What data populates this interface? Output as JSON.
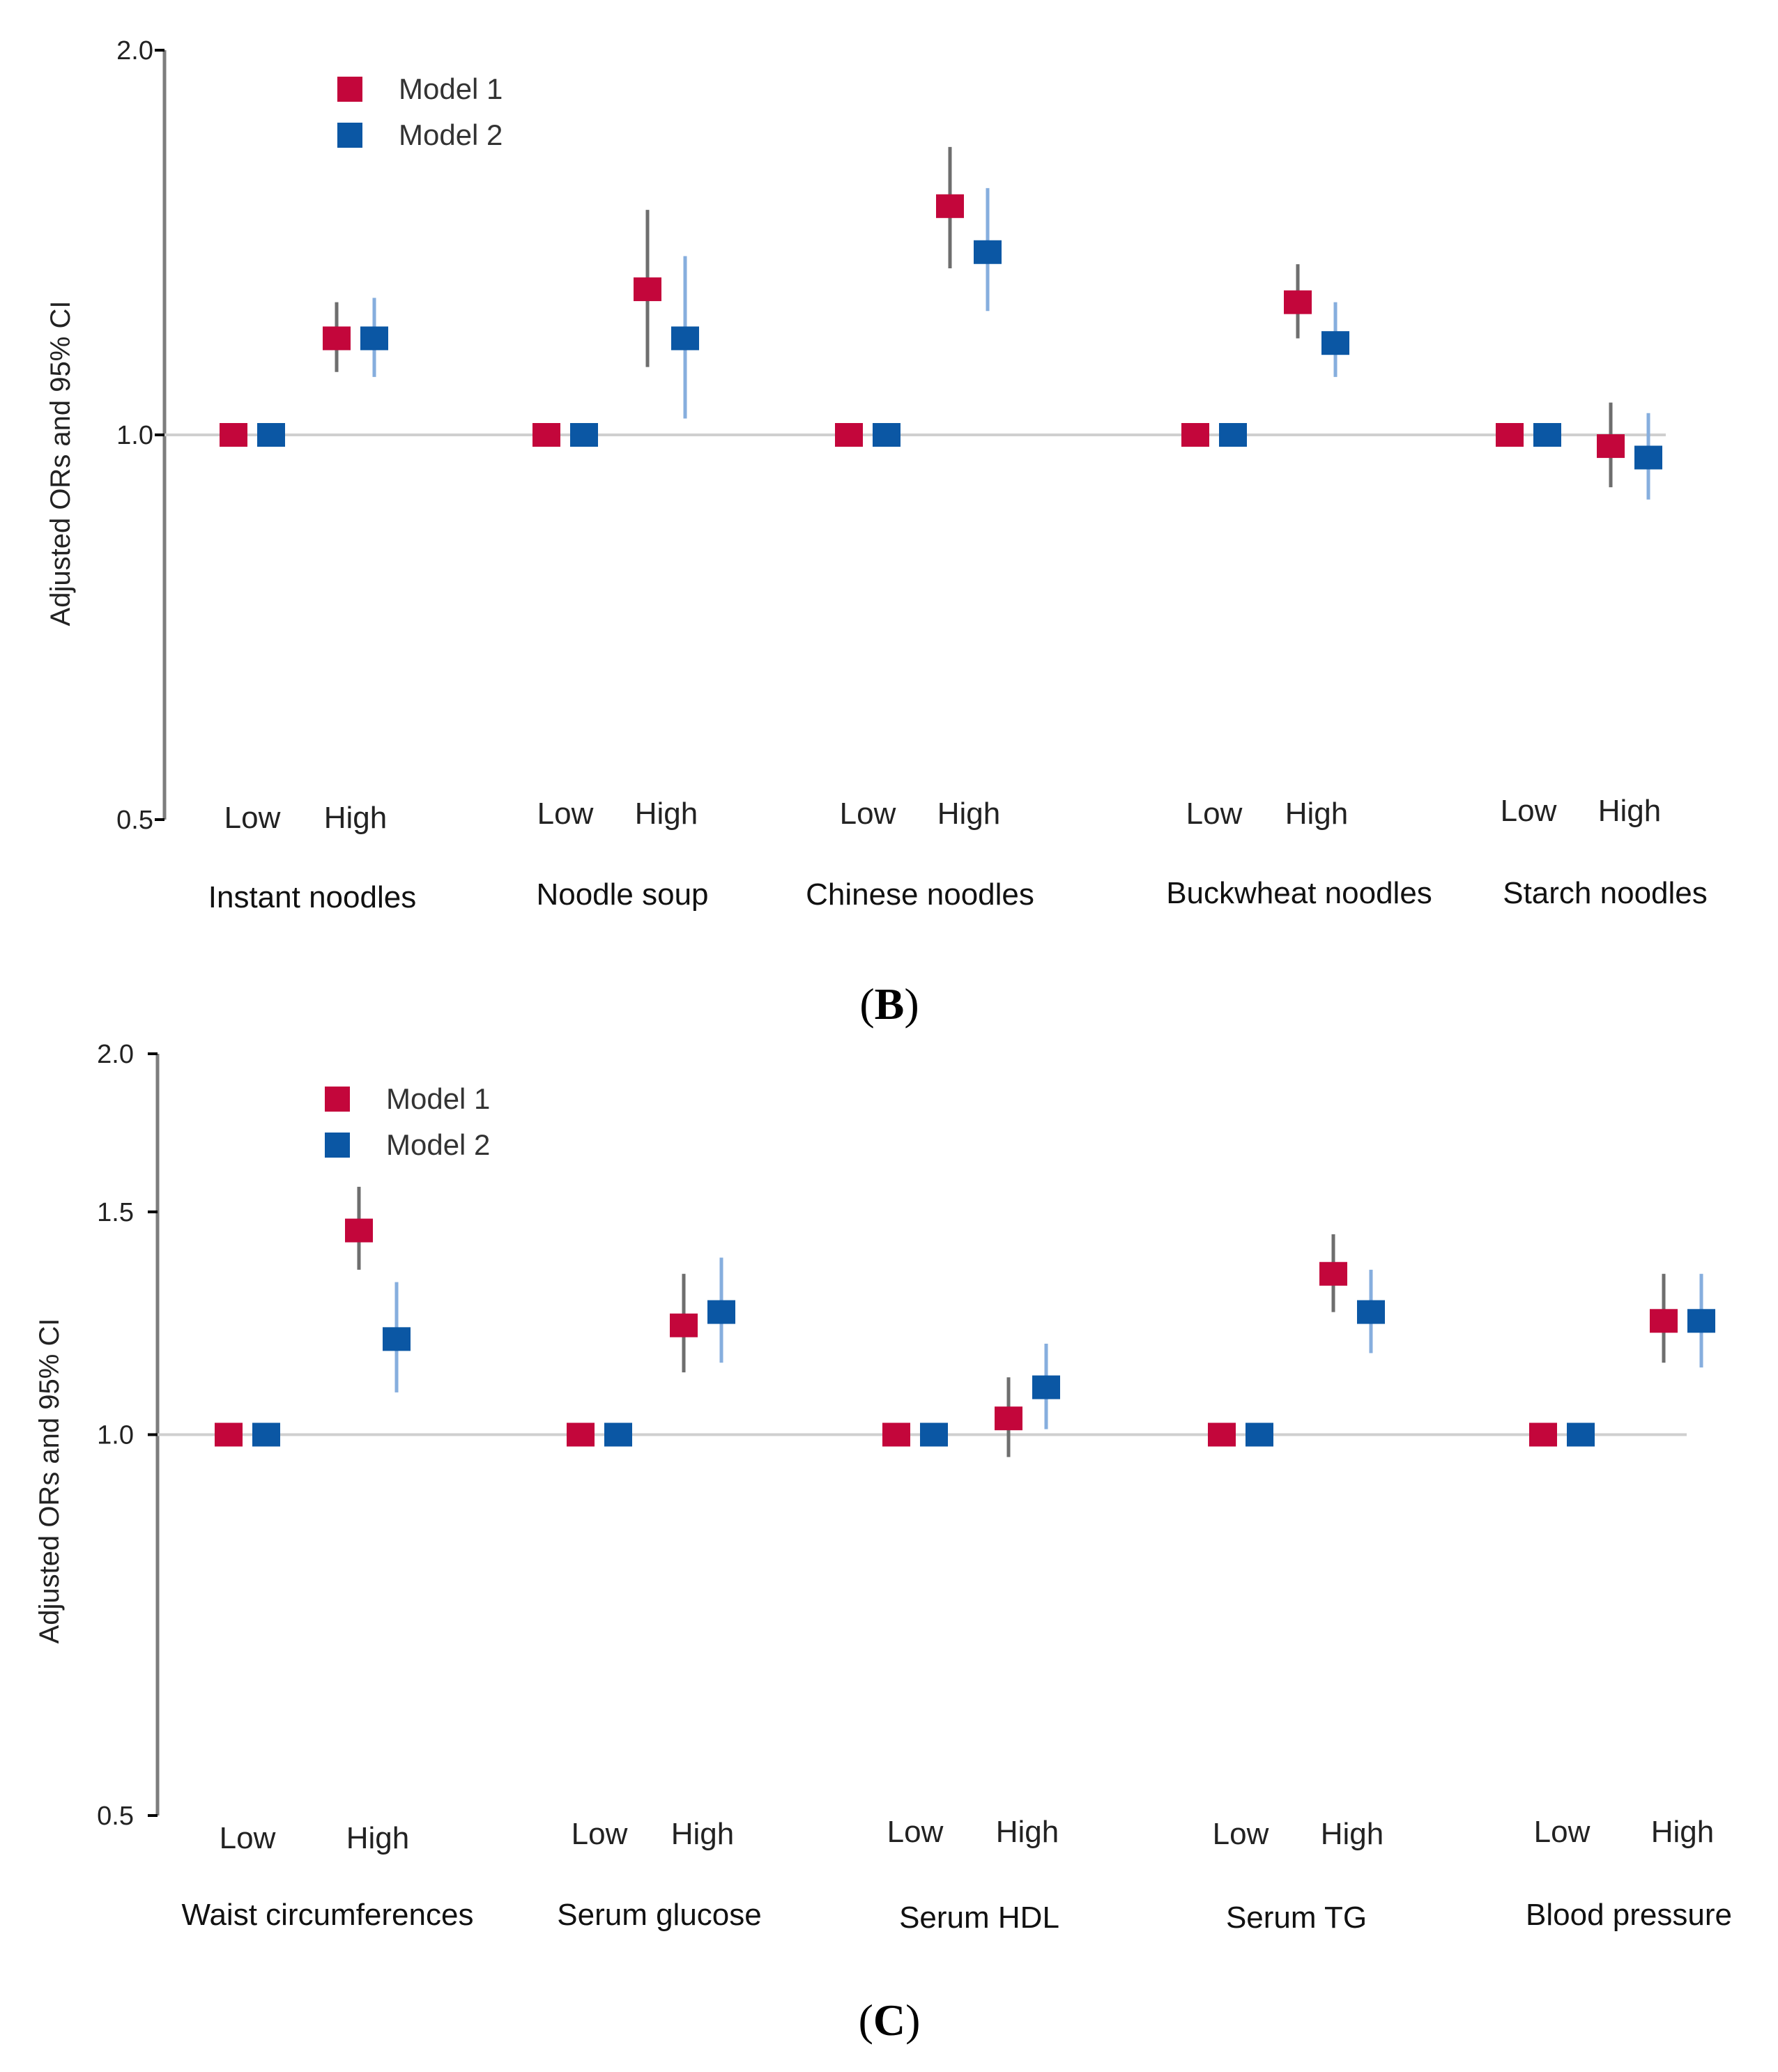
{
  "chart_data": [
    {
      "type": "forest",
      "panel": "B",
      "ylabel": "Adjusted ORs and 95% CI",
      "ylim": [
        0.5,
        2.0
      ],
      "yscale": "log",
      "yticks": [
        {
          "value": 0.5,
          "label": "0.5"
        },
        {
          "value": 1.0,
          "label": "1.0"
        },
        {
          "value": 2.0,
          "label": "2.0"
        }
      ],
      "reference_line": 1.0,
      "legend": [
        {
          "name": "Model 1",
          "color": "#c3063b"
        },
        {
          "name": "Model 2",
          "color": "#0b57a4"
        }
      ],
      "levels": [
        "Low",
        "High"
      ],
      "groups": [
        {
          "name": "Instant noodles",
          "points": [
            {
              "level": "Low",
              "series": "Model 1",
              "or": 1.0,
              "lo": 1.0,
              "hi": 1.0
            },
            {
              "level": "Low",
              "series": "Model 2",
              "or": 1.0,
              "lo": 1.0,
              "hi": 1.0
            },
            {
              "level": "High",
              "series": "Model 1",
              "or": 1.19,
              "lo": 1.12,
              "hi": 1.27
            },
            {
              "level": "High",
              "series": "Model 2",
              "or": 1.19,
              "lo": 1.11,
              "hi": 1.28
            }
          ]
        },
        {
          "name": "Noodle soup",
          "points": [
            {
              "level": "Low",
              "series": "Model 1",
              "or": 1.0,
              "lo": 1.0,
              "hi": 1.0
            },
            {
              "level": "Low",
              "series": "Model 2",
              "or": 1.0,
              "lo": 1.0,
              "hi": 1.0
            },
            {
              "level": "High",
              "series": "Model 1",
              "or": 1.3,
              "lo": 1.13,
              "hi": 1.5
            },
            {
              "level": "High",
              "series": "Model 2",
              "or": 1.19,
              "lo": 1.03,
              "hi": 1.38
            }
          ]
        },
        {
          "name": "Chinese noodles",
          "points": [
            {
              "level": "Low",
              "series": "Model 1",
              "or": 1.0,
              "lo": 1.0,
              "hi": 1.0
            },
            {
              "level": "Low",
              "series": "Model 2",
              "or": 1.0,
              "lo": 1.0,
              "hi": 1.0
            },
            {
              "level": "High",
              "series": "Model 1",
              "or": 1.51,
              "lo": 1.35,
              "hi": 1.68
            },
            {
              "level": "High",
              "series": "Model 2",
              "or": 1.39,
              "lo": 1.25,
              "hi": 1.56
            }
          ]
        },
        {
          "name": "Buckwheat noodles",
          "points": [
            {
              "level": "Low",
              "series": "Model 1",
              "or": 1.0,
              "lo": 1.0,
              "hi": 1.0
            },
            {
              "level": "Low",
              "series": "Model 2",
              "or": 1.0,
              "lo": 1.0,
              "hi": 1.0
            },
            {
              "level": "High",
              "series": "Model 1",
              "or": 1.27,
              "lo": 1.19,
              "hi": 1.36
            },
            {
              "level": "High",
              "series": "Model 2",
              "or": 1.18,
              "lo": 1.11,
              "hi": 1.27
            }
          ]
        },
        {
          "name": "Starch noodles",
          "points": [
            {
              "level": "Low",
              "series": "Model 1",
              "or": 1.0,
              "lo": 1.0,
              "hi": 1.0
            },
            {
              "level": "Low",
              "series": "Model 2",
              "or": 1.0,
              "lo": 1.0,
              "hi": 1.0
            },
            {
              "level": "High",
              "series": "Model 1",
              "or": 0.98,
              "lo": 0.91,
              "hi": 1.06
            },
            {
              "level": "High",
              "series": "Model 2",
              "or": 0.96,
              "lo": 0.89,
              "hi": 1.04
            }
          ]
        }
      ]
    },
    {
      "type": "forest",
      "panel": "C",
      "ylabel": "Adjusted ORs and 95% CI",
      "ylim": [
        0.5,
        2.0
      ],
      "yscale": "log",
      "yticks": [
        {
          "value": 0.5,
          "label": "0.5"
        },
        {
          "value": 1.0,
          "label": "1.0"
        },
        {
          "value": 1.5,
          "label": "1.5"
        },
        {
          "value": 2.0,
          "label": "2.0"
        }
      ],
      "reference_line": 1.0,
      "legend": [
        {
          "name": "Model 1",
          "color": "#c3063b"
        },
        {
          "name": "Model 2",
          "color": "#0b57a4"
        }
      ],
      "levels": [
        "Low",
        "High"
      ],
      "groups": [
        {
          "name": "Waist circumferences",
          "points": [
            {
              "level": "Low",
              "series": "Model 1",
              "or": 1.0,
              "lo": 1.0,
              "hi": 1.0
            },
            {
              "level": "Low",
              "series": "Model 2",
              "or": 1.0,
              "lo": 1.0,
              "hi": 1.0
            },
            {
              "level": "High",
              "series": "Model 1",
              "or": 1.45,
              "lo": 1.35,
              "hi": 1.57
            },
            {
              "level": "High",
              "series": "Model 2",
              "or": 1.19,
              "lo": 1.08,
              "hi": 1.32
            }
          ]
        },
        {
          "name": "Serum glucose",
          "points": [
            {
              "level": "Low",
              "series": "Model 1",
              "or": 1.0,
              "lo": 1.0,
              "hi": 1.0
            },
            {
              "level": "Low",
              "series": "Model 2",
              "or": 1.0,
              "lo": 1.0,
              "hi": 1.0
            },
            {
              "level": "High",
              "series": "Model 1",
              "or": 1.22,
              "lo": 1.12,
              "hi": 1.34
            },
            {
              "level": "High",
              "series": "Model 2",
              "or": 1.25,
              "lo": 1.14,
              "hi": 1.38
            }
          ]
        },
        {
          "name": "Serum HDL",
          "points": [
            {
              "level": "Low",
              "series": "Model 1",
              "or": 1.0,
              "lo": 1.0,
              "hi": 1.0
            },
            {
              "level": "Low",
              "series": "Model 2",
              "or": 1.0,
              "lo": 1.0,
              "hi": 1.0
            },
            {
              "level": "High",
              "series": "Model 1",
              "or": 1.03,
              "lo": 0.96,
              "hi": 1.11
            },
            {
              "level": "High",
              "series": "Model 2",
              "or": 1.09,
              "lo": 1.01,
              "hi": 1.18
            }
          ]
        },
        {
          "name": "Serum TG",
          "points": [
            {
              "level": "Low",
              "series": "Model 1",
              "or": 1.0,
              "lo": 1.0,
              "hi": 1.0
            },
            {
              "level": "Low",
              "series": "Model 2",
              "or": 1.0,
              "lo": 1.0,
              "hi": 1.0
            },
            {
              "level": "High",
              "series": "Model 1",
              "or": 1.34,
              "lo": 1.25,
              "hi": 1.44
            },
            {
              "level": "High",
              "series": "Model 2",
              "or": 1.25,
              "lo": 1.16,
              "hi": 1.35
            }
          ]
        },
        {
          "name": "Blood pressure",
          "points": [
            {
              "level": "Low",
              "series": "Model 1",
              "or": 1.0,
              "lo": 1.0,
              "hi": 1.0
            },
            {
              "level": "Low",
              "series": "Model 2",
              "or": 1.0,
              "lo": 1.0,
              "hi": 1.0
            },
            {
              "level": "High",
              "series": "Model 1",
              "or": 1.23,
              "lo": 1.14,
              "hi": 1.34
            },
            {
              "level": "High",
              "series": "Model 2",
              "or": 1.23,
              "lo": 1.13,
              "hi": 1.34
            }
          ]
        }
      ]
    }
  ],
  "panel_labels": [
    {
      "open": "(",
      "letter": "B",
      "close": ")"
    },
    {
      "open": "(",
      "letter": "C",
      "close": ")"
    }
  ]
}
